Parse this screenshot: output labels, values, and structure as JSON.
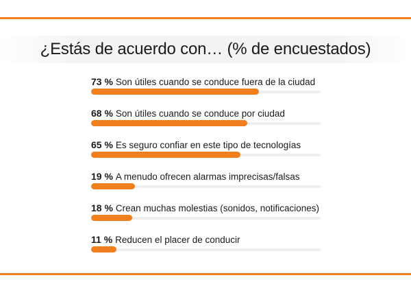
{
  "title": "¿Estás de acuerdo con… (% de encuestados)",
  "colors": {
    "accent": "#f07f1e",
    "track": "#eeeeee"
  },
  "chart_data": {
    "type": "bar",
    "orientation": "horizontal",
    "title": "¿Estás de acuerdo con… (% de encuestados)",
    "xlim": [
      0,
      100
    ],
    "value_suffix": " %",
    "items": [
      {
        "pct": "73 %",
        "value": 73,
        "label": "Son útiles cuando se conduce fuera de la ciudad"
      },
      {
        "pct": "68 %",
        "value": 68,
        "label": "Son útiles cuando se conduce por ciudad"
      },
      {
        "pct": "65 %",
        "value": 65,
        "label": "Es seguro confiar en este tipo de tecnologías"
      },
      {
        "pct": "19 %",
        "value": 19,
        "label": "A menudo ofrecen alarmas imprecisas/falsas"
      },
      {
        "pct": "18 %",
        "value": 18,
        "label": "Crean muchas molestias (sonidos, notificaciones)"
      },
      {
        "pct": "11 %",
        "value": 11,
        "label": "Reducen el placer de conducir"
      }
    ]
  }
}
